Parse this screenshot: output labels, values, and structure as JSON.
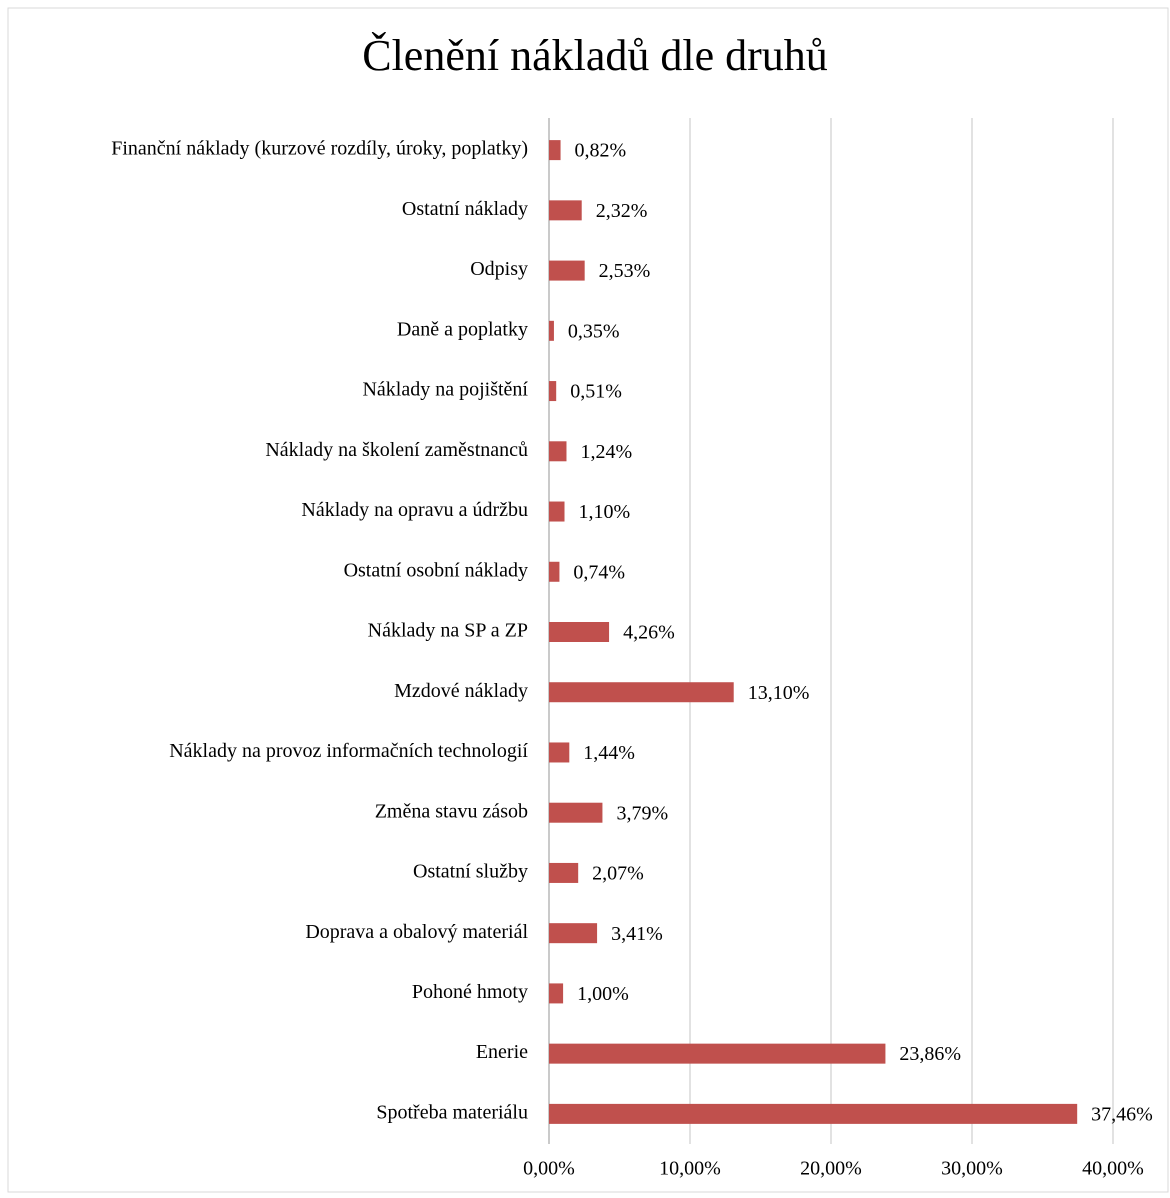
{
  "chart_data": {
    "type": "bar",
    "orientation": "horizontal",
    "title": "Členění nákladů dle druhů",
    "categories": [
      "Finanční náklady (kurzové rozdíly, úroky, poplatky)",
      "Ostatní náklady",
      "Odpisy",
      "Daně a poplatky",
      "Náklady na pojištění",
      "Náklady na školení zaměstnanců",
      "Náklady na opravu a údržbu",
      "Ostatní osobní náklady",
      "Náklady na SP a ZP",
      "Mzdové náklady",
      "Náklady na provoz informačních technologií",
      "Změna stavu zásob",
      "Ostatní služby",
      "Doprava a obalový materiál",
      "Pohoné hmoty",
      "Enerie",
      "Spotřeba materiálu"
    ],
    "values": [
      0.82,
      2.32,
      2.53,
      0.35,
      0.51,
      1.24,
      1.1,
      0.74,
      4.26,
      13.1,
      1.44,
      3.79,
      2.07,
      3.41,
      1.0,
      23.86,
      37.46
    ],
    "value_labels": [
      "0,82%",
      "2,32%",
      "2,53%",
      "0,35%",
      "0,51%",
      "1,24%",
      "1,10%",
      "0,74%",
      "4,26%",
      "13,10%",
      "1,44%",
      "3,79%",
      "2,07%",
      "3,41%",
      "1,00%",
      "23,86%",
      "37,46%"
    ],
    "color": "#c0504d",
    "xlim": [
      0,
      40
    ],
    "xticks": [
      {
        "value": 0,
        "label": "0,00%"
      },
      {
        "value": 10,
        "label": "10,00%"
      },
      {
        "value": 20,
        "label": "20,00%"
      },
      {
        "value": 30,
        "label": "30,00%"
      },
      {
        "value": 40,
        "label": "40,00%"
      }
    ],
    "grid": true
  }
}
